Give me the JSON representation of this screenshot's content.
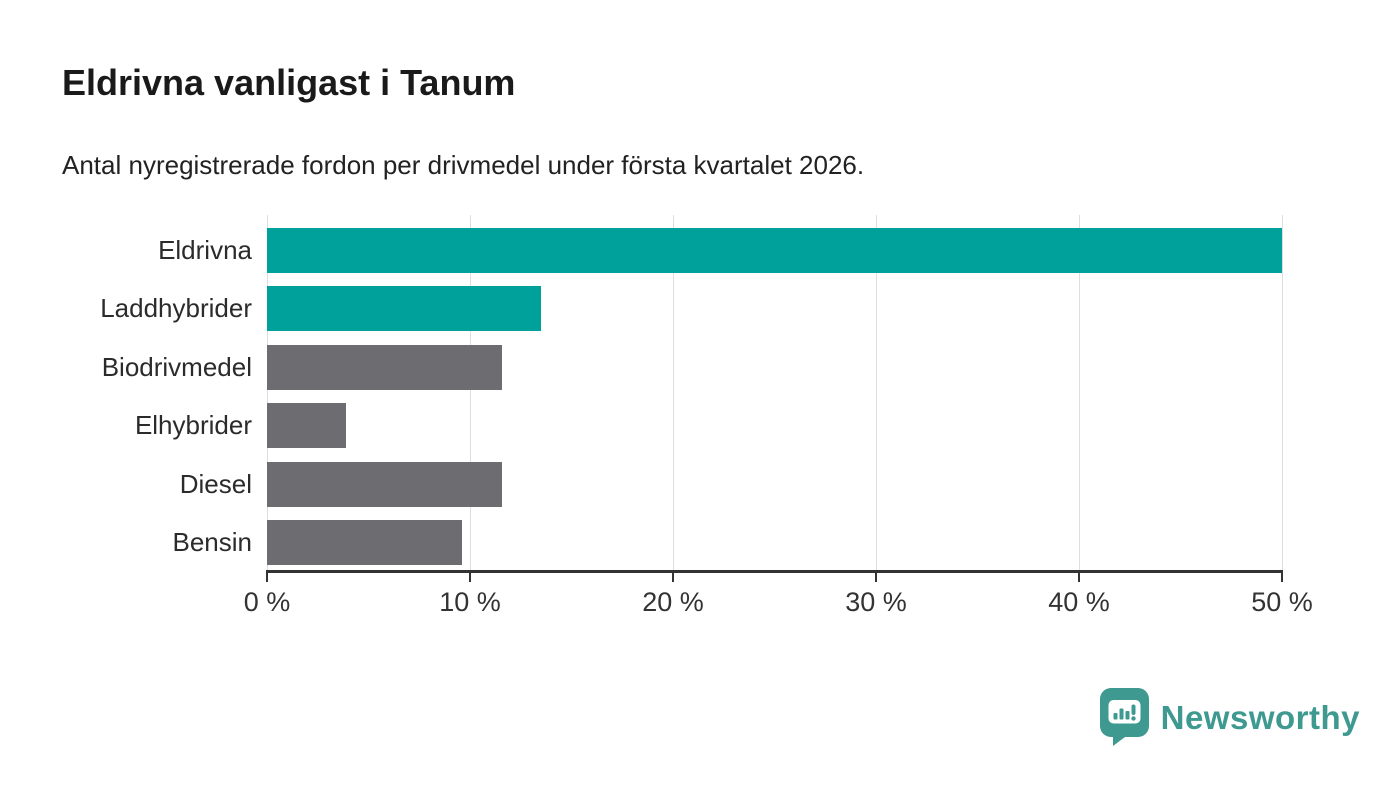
{
  "title": "Eldrivna vanligast i Tanum",
  "subtitle": "Antal nyregistrerade fordon per drivmedel under första kvartalet 2026.",
  "colors": {
    "highlight_teal": "#00a19a",
    "neutral_gray": "#6c6c71",
    "logo_teal": "#3e9990",
    "axis": "#333333",
    "gridline": "#dedede"
  },
  "chart_data": {
    "type": "bar",
    "orientation": "horizontal",
    "title": "Eldrivna vanligast i Tanum",
    "subtitle": "Antal nyregistrerade fordon per drivmedel under första kvartalet 2026.",
    "categories": [
      "Eldrivna",
      "Laddhybrider",
      "Biodrivmedel",
      "Elhybrider",
      "Diesel",
      "Bensin"
    ],
    "values": [
      50,
      13.5,
      11.6,
      3.9,
      11.6,
      9.6
    ],
    "unit": "%",
    "bar_colors": [
      "#00a19a",
      "#00a19a",
      "#6c6c71",
      "#6c6c71",
      "#6c6c71",
      "#6c6c71"
    ],
    "xlim": [
      0,
      50
    ],
    "x_ticks": [
      0,
      10,
      20,
      30,
      40,
      50
    ],
    "x_tick_labels": [
      "0 %",
      "10 %",
      "20 %",
      "30 %",
      "40 %",
      "50 %"
    ],
    "grid": "vertical",
    "legend": "none"
  },
  "logo": {
    "text": "Newsworthy"
  }
}
